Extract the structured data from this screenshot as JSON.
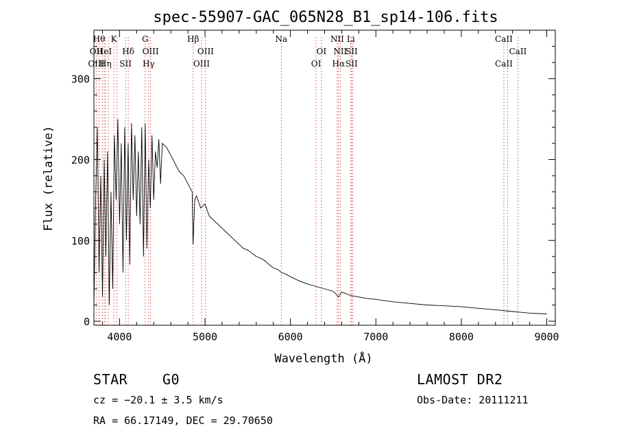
{
  "chart_data": {
    "type": "line",
    "title": "spec-55907-GAC_065N28_B1_sp14-106.fits",
    "xlabel": "Wavelength (Å)",
    "ylabel": "Flux (relative)",
    "xlim": [
      3700,
      9100
    ],
    "ylim": [
      -5,
      360
    ],
    "x_ticks": [
      4000,
      5000,
      6000,
      7000,
      8000,
      9000
    ],
    "x_tick_labels": [
      "4000",
      "5000",
      "6000",
      "7000",
      "8000",
      "9000"
    ],
    "y_ticks": [
      0,
      100,
      200,
      300
    ],
    "y_tick_labels": [
      "0",
      "100",
      "200",
      "300"
    ],
    "grid": false,
    "series": [
      {
        "x": [
          3700,
          3720,
          3740,
          3760,
          3780,
          3800,
          3820,
          3840,
          3860,
          3880,
          3900,
          3920,
          3940,
          3960,
          3980,
          4000,
          4020,
          4040,
          4060,
          4080,
          4100,
          4120,
          4140,
          4160,
          4180,
          4200,
          4220,
          4240,
          4260,
          4280,
          4300,
          4320,
          4340,
          4360,
          4380,
          4400,
          4420,
          4440,
          4460,
          4480,
          4500,
          4550,
          4600,
          4650,
          4700,
          4750,
          4800,
          4850,
          4860,
          4880,
          4900,
          4950,
          5000,
          5050,
          5100,
          5150,
          5200,
          5250,
          5300,
          5350,
          5400,
          5450,
          5500,
          5550,
          5600,
          5650,
          5700,
          5750,
          5800,
          5850,
          5900,
          5950,
          6000,
          6100,
          6200,
          6300,
          6400,
          6500,
          6563,
          6600,
          6700,
          6800,
          6900,
          7000,
          7200,
          7400,
          7600,
          7800,
          8000,
          8200,
          8400,
          8600,
          8800,
          9000
        ],
        "y": [
          20,
          150,
          240,
          60,
          180,
          30,
          200,
          80,
          210,
          20,
          160,
          40,
          230,
          150,
          250,
          120,
          220,
          60,
          240,
          100,
          220,
          70,
          245,
          150,
          230,
          130,
          210,
          120,
          240,
          80,
          245,
          90,
          200,
          140,
          230,
          150,
          210,
          190,
          225,
          170,
          220,
          215,
          205,
          195,
          185,
          180,
          170,
          160,
          95,
          150,
          155,
          140,
          145,
          130,
          125,
          120,
          115,
          110,
          105,
          100,
          95,
          90,
          88,
          84,
          80,
          78,
          75,
          70,
          66,
          64,
          60,
          58,
          55,
          50,
          46,
          43,
          40,
          37,
          30,
          36,
          32,
          30,
          28,
          27,
          24,
          22,
          20,
          19,
          18,
          16,
          14,
          12,
          10,
          9
        ]
      }
    ],
    "line_annotations": [
      {
        "wavelength": 3727,
        "lines": [
          "",
          "OII",
          "OIII"
        ]
      },
      {
        "wavelength": 3760,
        "lines": [
          "Hθ",
          "",
          ""
        ]
      },
      {
        "wavelength": 3798,
        "lines": [
          "",
          "",
          ""
        ]
      },
      {
        "wavelength": 3820,
        "lines": [
          "",
          "HeI",
          ""
        ]
      },
      {
        "wavelength": 3835,
        "lines": [
          "",
          "",
          "Hη"
        ]
      },
      {
        "wavelength": 3869,
        "lines": [
          "",
          "",
          ""
        ]
      },
      {
        "wavelength": 3934,
        "lines": [
          "K",
          "",
          ""
        ]
      },
      {
        "wavelength": 3970,
        "lines": [
          "",
          "",
          ""
        ]
      },
      {
        "wavelength": 4070,
        "lines": [
          "",
          "",
          "SII"
        ]
      },
      {
        "wavelength": 4102,
        "lines": [
          "",
          "Hδ",
          ""
        ]
      },
      {
        "wavelength": 4300,
        "lines": [
          "G",
          "",
          ""
        ]
      },
      {
        "wavelength": 4340,
        "lines": [
          "",
          "",
          "Hγ"
        ]
      },
      {
        "wavelength": 4363,
        "lines": [
          "",
          "OIII",
          ""
        ]
      },
      {
        "wavelength": 4861,
        "lines": [
          "Hβ",
          "",
          ""
        ]
      },
      {
        "wavelength": 4959,
        "lines": [
          "",
          "",
          "OIII"
        ]
      },
      {
        "wavelength": 5007,
        "lines": [
          "",
          "OIII",
          ""
        ]
      },
      {
        "wavelength": 5893,
        "lines": [
          "Na",
          "",
          ""
        ]
      },
      {
        "wavelength": 6300,
        "lines": [
          "",
          "",
          "OI"
        ]
      },
      {
        "wavelength": 6363,
        "lines": [
          "",
          "OI",
          ""
        ]
      },
      {
        "wavelength": 6548,
        "lines": [
          "NII",
          "",
          ""
        ]
      },
      {
        "wavelength": 6563,
        "lines": [
          "",
          "",
          "Hα"
        ]
      },
      {
        "wavelength": 6583,
        "lines": [
          "",
          "NII",
          ""
        ]
      },
      {
        "wavelength": 6707,
        "lines": [
          "Li",
          "",
          ""
        ]
      },
      {
        "wavelength": 6716,
        "lines": [
          "",
          "SII",
          "SII"
        ]
      },
      {
        "wavelength": 6731,
        "lines": [
          "",
          "",
          ""
        ]
      },
      {
        "wavelength": 8498,
        "lines": [
          "CaII",
          "",
          "CaII"
        ]
      },
      {
        "wavelength": 8542,
        "lines": [
          "",
          "",
          ""
        ]
      },
      {
        "wavelength": 8662,
        "lines": [
          "",
          "CaII",
          ""
        ]
      }
    ]
  },
  "info": {
    "object_class": "STAR",
    "subclass": "G0",
    "cz": "cz = −20.1 ± 3.5 km/s",
    "coords": "RA =  66.17149, DEC =  29.70650",
    "survey": "LAMOST DR2",
    "obs_date": "Obs-Date: 20111211"
  }
}
